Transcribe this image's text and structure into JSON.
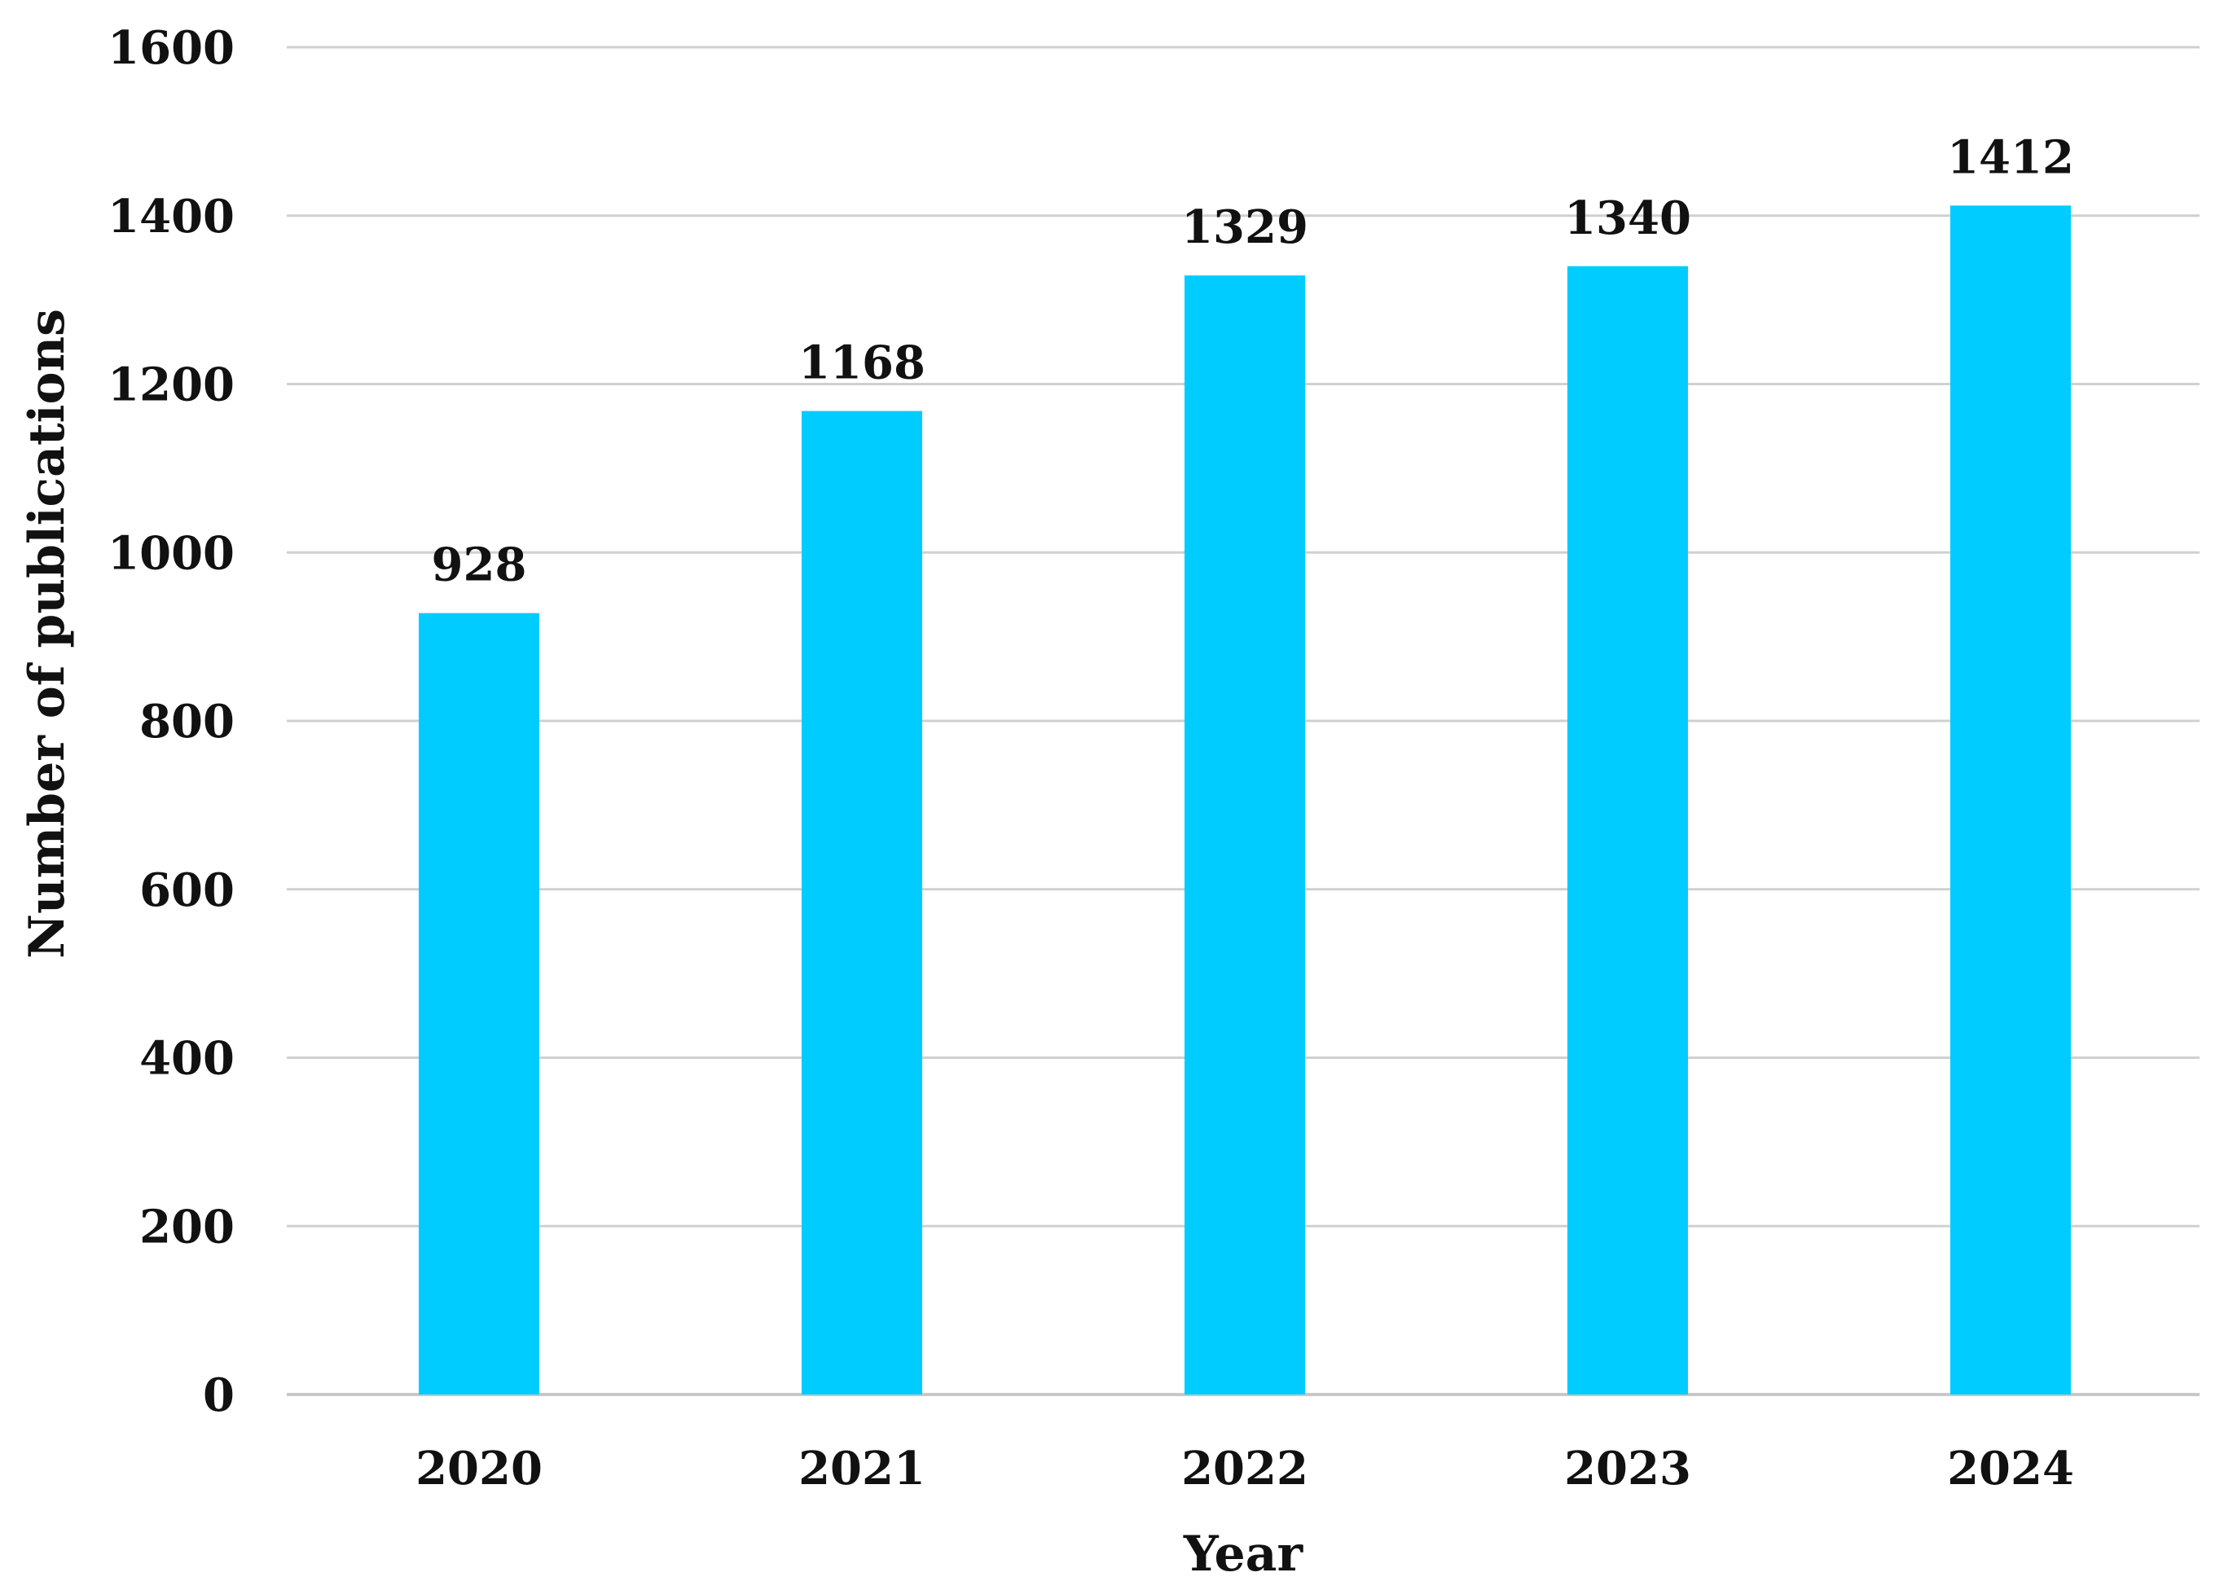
{
  "chart_data": {
    "type": "bar",
    "categories": [
      "2020",
      "2021",
      "2022",
      "2023",
      "2024"
    ],
    "values": [
      928,
      1168,
      1329,
      1340,
      1412
    ],
    "data_labels": [
      "928",
      "1168",
      "1329",
      "1340",
      "1412"
    ],
    "title": "",
    "xlabel": "Year",
    "ylabel": "Number of publications",
    "ylim": [
      0,
      1600
    ],
    "yticks": [
      0,
      200,
      400,
      600,
      800,
      1000,
      1200,
      1400,
      1600
    ],
    "ytick_labels": [
      "0",
      "200",
      "400",
      "600",
      "800",
      "1000",
      "1200",
      "1400",
      "1600"
    ],
    "grid": true,
    "legend": "none",
    "bar_color": "#00CCFF"
  }
}
